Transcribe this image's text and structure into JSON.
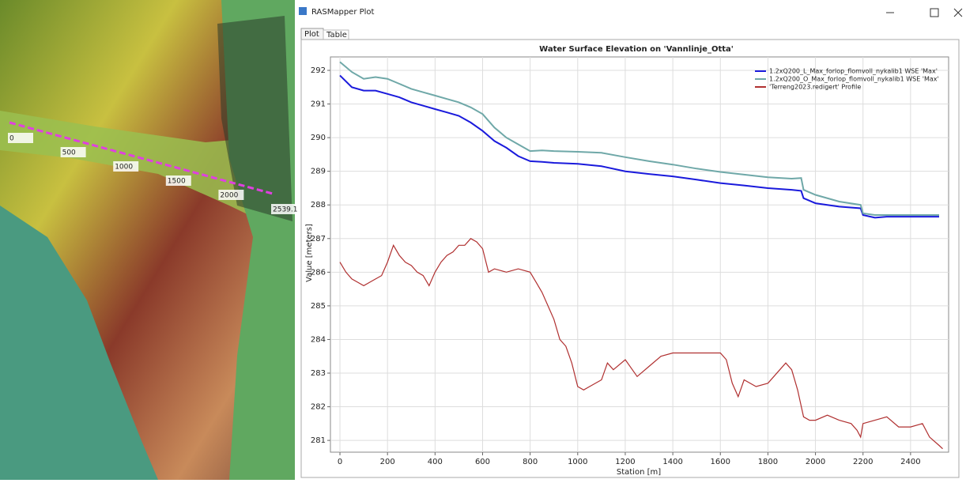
{
  "window": {
    "title": "RASMapper Plot",
    "tabs": [
      "Plot",
      "Table"
    ]
  },
  "map": {
    "labels": [
      "0",
      "500",
      "1000",
      "1500",
      "2000",
      "2539.1"
    ]
  },
  "chart_data": {
    "type": "line",
    "title": "Water Surface Elevation on 'Vannlinje_Otta'",
    "x_label": "Station [m]",
    "y_label": "Value [meters]",
    "xlim": [
      -40,
      2560
    ],
    "ylim": [
      280.65,
      292.4
    ],
    "xticks": [
      0,
      200,
      400,
      600,
      800,
      1000,
      1200,
      1400,
      1600,
      1800,
      2000,
      2200,
      2400
    ],
    "yticks": [
      281,
      282,
      283,
      284,
      285,
      286,
      287,
      288,
      289,
      290,
      291,
      292
    ],
    "grid": true,
    "legend": "upper right",
    "series": [
      {
        "name": "1.2xQ200_L_Max_forlop_flomvoll_nykalib1 WSE 'Max'",
        "color": "#1a1adc",
        "x": [
          0,
          50,
          100,
          150,
          200,
          250,
          300,
          350,
          400,
          450,
          500,
          550,
          600,
          650,
          700,
          750,
          800,
          850,
          900,
          1000,
          1100,
          1200,
          1300,
          1400,
          1500,
          1600,
          1700,
          1800,
          1900,
          1940,
          1950,
          2000,
          2100,
          2190,
          2200,
          2250,
          2300,
          2400,
          2520
        ],
        "values": [
          291.85,
          291.5,
          291.4,
          291.4,
          291.3,
          291.2,
          291.05,
          290.95,
          290.85,
          290.75,
          290.65,
          290.45,
          290.2,
          289.9,
          289.7,
          289.45,
          289.3,
          289.28,
          289.25,
          289.22,
          289.15,
          289.0,
          288.92,
          288.85,
          288.75,
          288.65,
          288.58,
          288.5,
          288.45,
          288.42,
          288.2,
          288.05,
          287.95,
          287.9,
          287.7,
          287.62,
          287.65,
          287.65,
          287.65
        ]
      },
      {
        "name": "1.2xQ200_O_Max_forlop_flomvoll_nykalib1 WSE 'Max'",
        "color": "#6fa8a8",
        "x": [
          0,
          50,
          100,
          150,
          200,
          250,
          300,
          350,
          400,
          450,
          500,
          550,
          600,
          650,
          700,
          750,
          800,
          850,
          900,
          1000,
          1100,
          1200,
          1300,
          1400,
          1500,
          1600,
          1700,
          1800,
          1900,
          1940,
          1950,
          2000,
          2100,
          2190,
          2200,
          2250,
          2300,
          2400,
          2520
        ],
        "values": [
          292.25,
          291.95,
          291.75,
          291.8,
          291.75,
          291.6,
          291.45,
          291.35,
          291.25,
          291.15,
          291.05,
          290.9,
          290.7,
          290.3,
          290.0,
          289.8,
          289.6,
          289.62,
          289.6,
          289.58,
          289.55,
          289.42,
          289.3,
          289.2,
          289.08,
          288.98,
          288.9,
          288.82,
          288.78,
          288.8,
          288.45,
          288.3,
          288.1,
          288.0,
          287.75,
          287.7,
          287.7,
          287.7,
          287.7
        ]
      },
      {
        "name": "'Terreng2023.redigert' Profile",
        "color": "#b03030",
        "x": [
          0,
          25,
          50,
          75,
          100,
          125,
          150,
          175,
          200,
          225,
          250,
          275,
          300,
          325,
          350,
          375,
          400,
          425,
          450,
          475,
          500,
          525,
          550,
          575,
          600,
          625,
          650,
          700,
          750,
          800,
          825,
          850,
          875,
          900,
          925,
          950,
          975,
          1000,
          1025,
          1050,
          1100,
          1125,
          1150,
          1200,
          1250,
          1300,
          1350,
          1400,
          1450,
          1500,
          1550,
          1600,
          1625,
          1650,
          1675,
          1700,
          1750,
          1800,
          1850,
          1875,
          1900,
          1925,
          1950,
          1975,
          2000,
          2050,
          2100,
          2150,
          2175,
          2190,
          2200,
          2250,
          2300,
          2350,
          2400,
          2450,
          2480,
          2520,
          2535
        ],
        "values": [
          286.3,
          286.0,
          285.8,
          285.7,
          285.6,
          285.7,
          285.8,
          285.9,
          286.3,
          286.8,
          286.5,
          286.3,
          286.2,
          286.0,
          285.9,
          285.6,
          286.0,
          286.3,
          286.5,
          286.6,
          286.8,
          286.8,
          287.0,
          286.9,
          286.7,
          286.0,
          286.1,
          286.0,
          286.1,
          286.0,
          285.7,
          285.4,
          285.0,
          284.6,
          284.0,
          283.8,
          283.3,
          282.6,
          282.5,
          282.6,
          282.8,
          283.3,
          283.1,
          283.4,
          282.9,
          283.2,
          283.5,
          283.6,
          283.6,
          283.6,
          283.6,
          283.6,
          283.4,
          282.7,
          282.3,
          282.8,
          282.6,
          282.7,
          283.1,
          283.3,
          283.1,
          282.5,
          281.7,
          281.6,
          281.6,
          281.75,
          281.6,
          281.5,
          281.3,
          281.1,
          281.5,
          281.6,
          281.7,
          281.4,
          281.4,
          281.5,
          281.1,
          280.85,
          280.75
        ]
      }
    ]
  }
}
